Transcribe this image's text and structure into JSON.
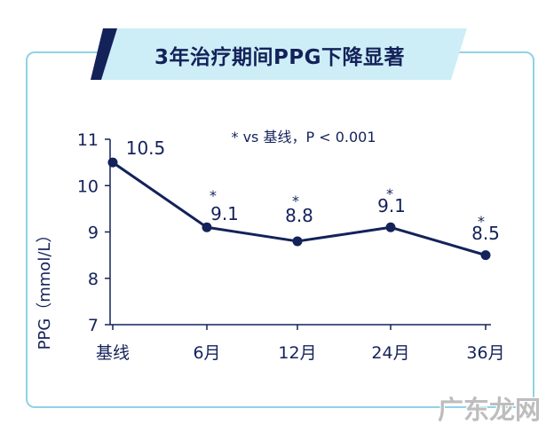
{
  "title": "3年治疗期间PPG下降显著",
  "watermark": "广东龙网",
  "colors": {
    "navy": "#14225a",
    "banner_light": "#cdeef6",
    "card_border": "#8fd3e3"
  },
  "chart_data": {
    "type": "line",
    "categories": [
      "基线",
      "6月",
      "12月",
      "24月",
      "36月"
    ],
    "values": [
      10.5,
      9.1,
      8.8,
      9.1,
      8.5
    ],
    "data_labels": [
      "10.5",
      "9.1",
      "8.8",
      "9.1",
      "8.5"
    ],
    "significance_marks": [
      "",
      "*",
      "*",
      "*",
      "*"
    ],
    "annotation": "* vs 基线，P < 0.001",
    "ylabel": "PPG（mmol/L）",
    "xlabel": "",
    "ylim": [
      7,
      11
    ],
    "yticks": [
      7,
      8,
      9,
      10,
      11
    ],
    "grid": false,
    "legend": "none"
  }
}
